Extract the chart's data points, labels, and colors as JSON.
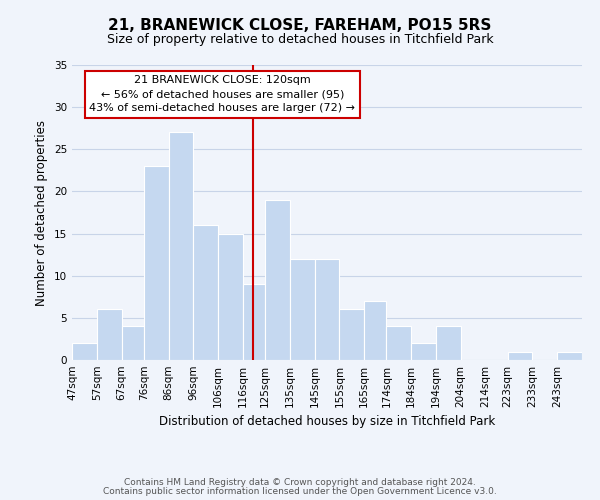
{
  "title": "21, BRANEWICK CLOSE, FAREHAM, PO15 5RS",
  "subtitle": "Size of property relative to detached houses in Titchfield Park",
  "xlabel": "Distribution of detached houses by size in Titchfield Park",
  "ylabel": "Number of detached properties",
  "bar_labels": [
    "47sqm",
    "57sqm",
    "67sqm",
    "76sqm",
    "86sqm",
    "96sqm",
    "106sqm",
    "116sqm",
    "125sqm",
    "135sqm",
    "145sqm",
    "155sqm",
    "165sqm",
    "174sqm",
    "184sqm",
    "194sqm",
    "204sqm",
    "214sqm",
    "223sqm",
    "233sqm",
    "243sqm"
  ],
  "bar_heights": [
    2,
    6,
    4,
    23,
    27,
    16,
    15,
    9,
    19,
    12,
    12,
    6,
    7,
    4,
    2,
    4,
    0,
    0,
    1,
    0,
    1
  ],
  "bar_color": "#c5d8f0",
  "bar_edge_color": "#ffffff",
  "ylim": [
    0,
    35
  ],
  "yticks": [
    0,
    5,
    10,
    15,
    20,
    25,
    30,
    35
  ],
  "vline_x": 120,
  "vline_color": "#cc0000",
  "annotation_line1": "21 BRANEWICK CLOSE: 120sqm",
  "annotation_line2": "← 56% of detached houses are smaller (95)",
  "annotation_line3": "43% of semi-detached houses are larger (72) →",
  "footnote1": "Contains HM Land Registry data © Crown copyright and database right 2024.",
  "footnote2": "Contains public sector information licensed under the Open Government Licence v3.0.",
  "bg_color": "#f0f4fb",
  "grid_color": "#c8d4e8",
  "title_fontsize": 11,
  "subtitle_fontsize": 9,
  "axis_label_fontsize": 8.5,
  "tick_fontsize": 7.5,
  "annot_fontsize": 8
}
